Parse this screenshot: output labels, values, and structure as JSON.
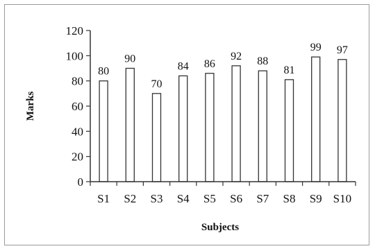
{
  "chart_data": {
    "type": "bar",
    "categories": [
      "S1",
      "S2",
      "S3",
      "S4",
      "S5",
      "S6",
      "S7",
      "S8",
      "S9",
      "S10"
    ],
    "values": [
      80,
      90,
      70,
      84,
      86,
      92,
      88,
      81,
      99,
      97
    ],
    "data_labels": [
      "80",
      "90",
      "70",
      "84",
      "86",
      "92",
      "88",
      "81",
      "99",
      "97"
    ],
    "title": "",
    "xlabel": "Subjects",
    "ylabel": "Marks",
    "ylim": [
      0,
      120
    ],
    "yticks": [
      "0",
      "20",
      "40",
      "60",
      "80",
      "100",
      "120"
    ],
    "grid": false,
    "legend": "none",
    "colors": {
      "bar_fill": "#ffffff",
      "bar_stroke": "#333333",
      "axis": "#333333"
    }
  }
}
